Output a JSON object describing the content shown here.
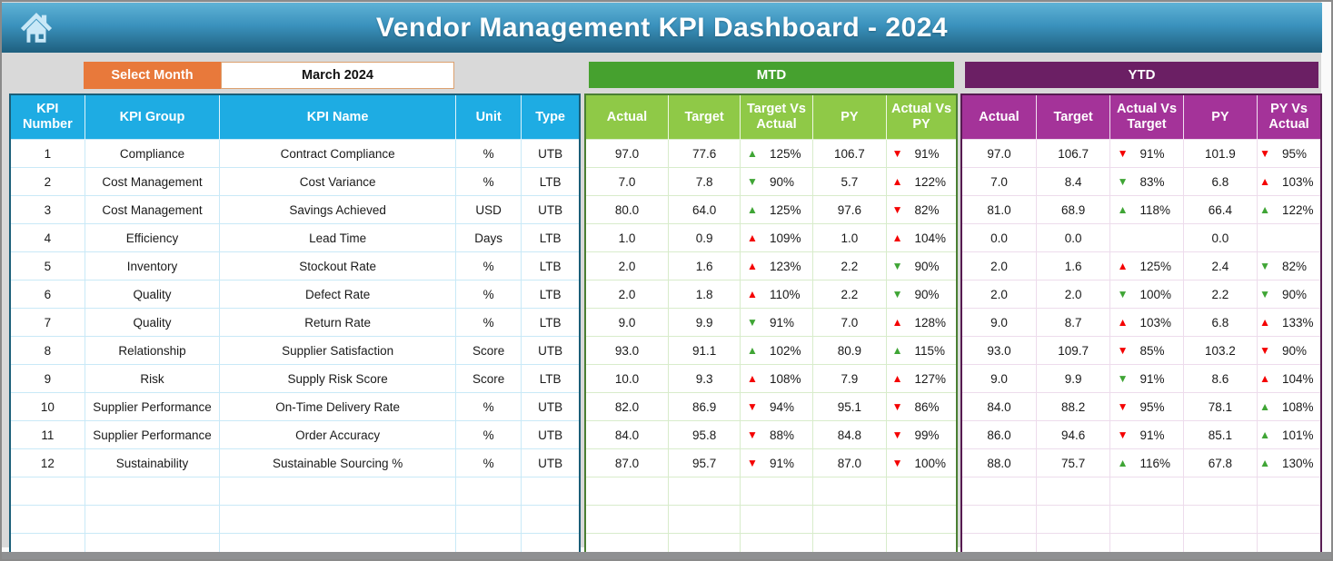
{
  "header": {
    "title": "Vendor Management KPI Dashboard - 2024"
  },
  "controls": {
    "select_month_label": "Select Month",
    "selected_month": "March 2024"
  },
  "icons": {
    "up": "▲",
    "down": "▼",
    "home": "home-icon"
  },
  "colors": {
    "frame_border": "#8a8a8a",
    "page_bg": "#d9d9d9",
    "bottom_bar": "#8f9092",
    "header_gradient_top": "#5fb2d6",
    "header_gradient_mid": "#3b92bd",
    "header_gradient_bottom": "#1e5f7e",
    "orange": "#e8793b",
    "month_box_border": "#dca06f",
    "table_blue_header": "#1eace3",
    "table_blue_border": "#1a5e78",
    "table_blue_grid": "#c9e9f7",
    "mtd_banner": "#46a12f",
    "mtd_header": "#8fc947",
    "mtd_border": "#4a7f33",
    "mtd_grid": "#d8eccb",
    "ytd_banner": "#6b1f64",
    "ytd_header": "#a43399",
    "ytd_border": "#571b51",
    "ytd_grid": "#eddcec",
    "arrow_green": "#3fa535",
    "arrow_red": "#f40000"
  },
  "kpi_table": {
    "headers": [
      "KPI Number",
      "KPI Group",
      "KPI Name",
      "Unit",
      "Type"
    ]
  },
  "mtd": {
    "title": "MTD",
    "headers": [
      "Actual",
      "Target",
      "Target Vs Actual",
      "PY",
      "Actual Vs PY"
    ]
  },
  "ytd": {
    "title": "YTD",
    "headers": [
      "Actual",
      "Target",
      "Actual Vs Target",
      "PY",
      "PY Vs Actual"
    ]
  },
  "empty_rows": 3,
  "rows": [
    {
      "kpi_number": "1",
      "kpi_group": "Compliance",
      "kpi_name": "Contract Compliance",
      "unit": "%",
      "type": "UTB",
      "mtd": {
        "actual": "97.0",
        "target": "77.6",
        "target_vs_actual": {
          "dir": "up",
          "color": "green",
          "value": "125%"
        },
        "py": "106.7",
        "actual_vs_py": {
          "dir": "down",
          "color": "red",
          "value": "91%"
        }
      },
      "ytd": {
        "actual": "97.0",
        "target": "106.7",
        "actual_vs_target": {
          "dir": "down",
          "color": "red",
          "value": "91%"
        },
        "py": "101.9",
        "py_vs_actual": {
          "dir": "down",
          "color": "red",
          "value": "95%"
        }
      }
    },
    {
      "kpi_number": "2",
      "kpi_group": "Cost Management",
      "kpi_name": "Cost Variance",
      "unit": "%",
      "type": "LTB",
      "mtd": {
        "actual": "7.0",
        "target": "7.8",
        "target_vs_actual": {
          "dir": "down",
          "color": "green",
          "value": "90%"
        },
        "py": "5.7",
        "actual_vs_py": {
          "dir": "up",
          "color": "red",
          "value": "122%"
        }
      },
      "ytd": {
        "actual": "7.0",
        "target": "8.4",
        "actual_vs_target": {
          "dir": "down",
          "color": "green",
          "value": "83%"
        },
        "py": "6.8",
        "py_vs_actual": {
          "dir": "up",
          "color": "red",
          "value": "103%"
        }
      }
    },
    {
      "kpi_number": "3",
      "kpi_group": "Cost Management",
      "kpi_name": "Savings Achieved",
      "unit": "USD",
      "type": "UTB",
      "mtd": {
        "actual": "80.0",
        "target": "64.0",
        "target_vs_actual": {
          "dir": "up",
          "color": "green",
          "value": "125%"
        },
        "py": "97.6",
        "actual_vs_py": {
          "dir": "down",
          "color": "red",
          "value": "82%"
        }
      },
      "ytd": {
        "actual": "81.0",
        "target": "68.9",
        "actual_vs_target": {
          "dir": "up",
          "color": "green",
          "value": "118%"
        },
        "py": "66.4",
        "py_vs_actual": {
          "dir": "up",
          "color": "green",
          "value": "122%"
        }
      }
    },
    {
      "kpi_number": "4",
      "kpi_group": "Efficiency",
      "kpi_name": "Lead Time",
      "unit": "Days",
      "type": "LTB",
      "mtd": {
        "actual": "1.0",
        "target": "0.9",
        "target_vs_actual": {
          "dir": "up",
          "color": "red",
          "value": "109%"
        },
        "py": "1.0",
        "actual_vs_py": {
          "dir": "up",
          "color": "red",
          "value": "104%"
        }
      },
      "ytd": {
        "actual": "0.0",
        "target": "0.0",
        "actual_vs_target": null,
        "py": "0.0",
        "py_vs_actual": null
      }
    },
    {
      "kpi_number": "5",
      "kpi_group": "Inventory",
      "kpi_name": "Stockout Rate",
      "unit": "%",
      "type": "LTB",
      "mtd": {
        "actual": "2.0",
        "target": "1.6",
        "target_vs_actual": {
          "dir": "up",
          "color": "red",
          "value": "123%"
        },
        "py": "2.2",
        "actual_vs_py": {
          "dir": "down",
          "color": "green",
          "value": "90%"
        }
      },
      "ytd": {
        "actual": "2.0",
        "target": "1.6",
        "actual_vs_target": {
          "dir": "up",
          "color": "red",
          "value": "125%"
        },
        "py": "2.4",
        "py_vs_actual": {
          "dir": "down",
          "color": "green",
          "value": "82%"
        }
      }
    },
    {
      "kpi_number": "6",
      "kpi_group": "Quality",
      "kpi_name": "Defect Rate",
      "unit": "%",
      "type": "LTB",
      "mtd": {
        "actual": "2.0",
        "target": "1.8",
        "target_vs_actual": {
          "dir": "up",
          "color": "red",
          "value": "110%"
        },
        "py": "2.2",
        "actual_vs_py": {
          "dir": "down",
          "color": "green",
          "value": "90%"
        }
      },
      "ytd": {
        "actual": "2.0",
        "target": "2.0",
        "actual_vs_target": {
          "dir": "down",
          "color": "green",
          "value": "100%"
        },
        "py": "2.2",
        "py_vs_actual": {
          "dir": "down",
          "color": "green",
          "value": "90%"
        }
      }
    },
    {
      "kpi_number": "7",
      "kpi_group": "Quality",
      "kpi_name": "Return Rate",
      "unit": "%",
      "type": "LTB",
      "mtd": {
        "actual": "9.0",
        "target": "9.9",
        "target_vs_actual": {
          "dir": "down",
          "color": "green",
          "value": "91%"
        },
        "py": "7.0",
        "actual_vs_py": {
          "dir": "up",
          "color": "red",
          "value": "128%"
        }
      },
      "ytd": {
        "actual": "9.0",
        "target": "8.7",
        "actual_vs_target": {
          "dir": "up",
          "color": "red",
          "value": "103%"
        },
        "py": "6.8",
        "py_vs_actual": {
          "dir": "up",
          "color": "red",
          "value": "133%"
        }
      }
    },
    {
      "kpi_number": "8",
      "kpi_group": "Relationship",
      "kpi_name": "Supplier Satisfaction",
      "unit": "Score",
      "type": "UTB",
      "mtd": {
        "actual": "93.0",
        "target": "91.1",
        "target_vs_actual": {
          "dir": "up",
          "color": "green",
          "value": "102%"
        },
        "py": "80.9",
        "actual_vs_py": {
          "dir": "up",
          "color": "green",
          "value": "115%"
        }
      },
      "ytd": {
        "actual": "93.0",
        "target": "109.7",
        "actual_vs_target": {
          "dir": "down",
          "color": "red",
          "value": "85%"
        },
        "py": "103.2",
        "py_vs_actual": {
          "dir": "down",
          "color": "red",
          "value": "90%"
        }
      }
    },
    {
      "kpi_number": "9",
      "kpi_group": "Risk",
      "kpi_name": "Supply Risk Score",
      "unit": "Score",
      "type": "LTB",
      "mtd": {
        "actual": "10.0",
        "target": "9.3",
        "target_vs_actual": {
          "dir": "up",
          "color": "red",
          "value": "108%"
        },
        "py": "7.9",
        "actual_vs_py": {
          "dir": "up",
          "color": "red",
          "value": "127%"
        }
      },
      "ytd": {
        "actual": "9.0",
        "target": "9.9",
        "actual_vs_target": {
          "dir": "down",
          "color": "green",
          "value": "91%"
        },
        "py": "8.6",
        "py_vs_actual": {
          "dir": "up",
          "color": "red",
          "value": "104%"
        }
      }
    },
    {
      "kpi_number": "10",
      "kpi_group": "Supplier Performance",
      "kpi_name": "On-Time Delivery Rate",
      "unit": "%",
      "type": "UTB",
      "mtd": {
        "actual": "82.0",
        "target": "86.9",
        "target_vs_actual": {
          "dir": "down",
          "color": "red",
          "value": "94%"
        },
        "py": "95.1",
        "actual_vs_py": {
          "dir": "down",
          "color": "red",
          "value": "86%"
        }
      },
      "ytd": {
        "actual": "84.0",
        "target": "88.2",
        "actual_vs_target": {
          "dir": "down",
          "color": "red",
          "value": "95%"
        },
        "py": "78.1",
        "py_vs_actual": {
          "dir": "up",
          "color": "green",
          "value": "108%"
        }
      }
    },
    {
      "kpi_number": "11",
      "kpi_group": "Supplier Performance",
      "kpi_name": "Order Accuracy",
      "unit": "%",
      "type": "UTB",
      "mtd": {
        "actual": "84.0",
        "target": "95.8",
        "target_vs_actual": {
          "dir": "down",
          "color": "red",
          "value": "88%"
        },
        "py": "84.8",
        "actual_vs_py": {
          "dir": "down",
          "color": "red",
          "value": "99%"
        }
      },
      "ytd": {
        "actual": "86.0",
        "target": "94.6",
        "actual_vs_target": {
          "dir": "down",
          "color": "red",
          "value": "91%"
        },
        "py": "85.1",
        "py_vs_actual": {
          "dir": "up",
          "color": "green",
          "value": "101%"
        }
      }
    },
    {
      "kpi_number": "12",
      "kpi_group": "Sustainability",
      "kpi_name": "Sustainable Sourcing %",
      "unit": "%",
      "type": "UTB",
      "mtd": {
        "actual": "87.0",
        "target": "95.7",
        "target_vs_actual": {
          "dir": "down",
          "color": "red",
          "value": "91%"
        },
        "py": "87.0",
        "actual_vs_py": {
          "dir": "down",
          "color": "red",
          "value": "100%"
        }
      },
      "ytd": {
        "actual": "88.0",
        "target": "75.7",
        "actual_vs_target": {
          "dir": "up",
          "color": "green",
          "value": "116%"
        },
        "py": "67.8",
        "py_vs_actual": {
          "dir": "up",
          "color": "green",
          "value": "130%"
        }
      }
    }
  ]
}
